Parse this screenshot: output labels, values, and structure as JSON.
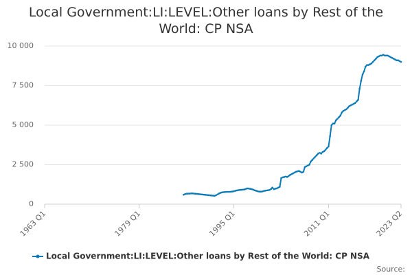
{
  "chart_data": {
    "type": "line",
    "title": "Local Government:LI:LEVEL:Other loans by Rest of the World: CP NSA",
    "source": "Source:",
    "x": [
      "1986 Q3",
      "1986 Q4",
      "1987 Q1",
      "1987 Q2",
      "1987 Q3",
      "1987 Q4",
      "1988 Q1",
      "1988 Q2",
      "1988 Q3",
      "1988 Q4",
      "1989 Q1",
      "1989 Q2",
      "1989 Q3",
      "1989 Q4",
      "1990 Q1",
      "1990 Q2",
      "1990 Q3",
      "1990 Q4",
      "1991 Q1",
      "1991 Q2",
      "1991 Q3",
      "1991 Q4",
      "1992 Q1",
      "1992 Q2",
      "1992 Q3",
      "1992 Q4",
      "1993 Q1",
      "1993 Q2",
      "1993 Q3",
      "1993 Q4",
      "1994 Q1",
      "1994 Q2",
      "1994 Q3",
      "1994 Q4",
      "1995 Q1",
      "1995 Q2",
      "1995 Q3",
      "1995 Q4",
      "1996 Q1",
      "1996 Q2",
      "1996 Q3",
      "1996 Q4",
      "1997 Q1",
      "1997 Q2",
      "1997 Q3",
      "1997 Q4",
      "1998 Q1",
      "1998 Q2",
      "1998 Q3",
      "1998 Q4",
      "1999 Q1",
      "1999 Q2",
      "1999 Q3",
      "1999 Q4",
      "2000 Q1",
      "2000 Q2",
      "2000 Q3",
      "2000 Q4",
      "2001 Q1",
      "2001 Q2",
      "2001 Q3",
      "2001 Q4",
      "2002 Q1",
      "2002 Q2",
      "2002 Q3",
      "2002 Q4",
      "2003 Q1",
      "2003 Q2",
      "2003 Q3",
      "2003 Q4",
      "2004 Q1",
      "2004 Q2",
      "2004 Q3",
      "2004 Q4",
      "2005 Q1",
      "2005 Q2",
      "2005 Q3",
      "2005 Q4",
      "2006 Q1",
      "2006 Q2",
      "2006 Q3",
      "2006 Q4",
      "2007 Q1",
      "2007 Q2",
      "2007 Q3",
      "2007 Q4",
      "2008 Q1",
      "2008 Q2",
      "2008 Q3",
      "2008 Q4",
      "2009 Q1",
      "2009 Q2",
      "2009 Q3",
      "2009 Q4",
      "2010 Q1",
      "2010 Q2",
      "2010 Q3",
      "2010 Q4",
      "2011 Q1",
      "2011 Q2",
      "2011 Q3",
      "2011 Q4",
      "2012 Q1",
      "2012 Q2",
      "2012 Q3",
      "2012 Q4",
      "2013 Q1",
      "2013 Q2",
      "2013 Q3",
      "2013 Q4",
      "2014 Q1",
      "2014 Q2",
      "2014 Q3",
      "2014 Q4",
      "2015 Q1",
      "2015 Q2",
      "2015 Q3",
      "2015 Q4",
      "2016 Q1",
      "2016 Q2",
      "2016 Q3",
      "2016 Q4",
      "2017 Q1",
      "2017 Q2",
      "2017 Q3",
      "2017 Q4",
      "2018 Q1",
      "2018 Q2",
      "2018 Q3",
      "2018 Q4",
      "2019 Q1",
      "2019 Q2",
      "2019 Q3",
      "2019 Q4",
      "2020 Q1",
      "2020 Q2",
      "2020 Q3",
      "2020 Q4",
      "2021 Q1",
      "2021 Q2",
      "2021 Q3",
      "2021 Q4",
      "2022 Q1",
      "2022 Q2",
      "2022 Q3",
      "2022 Q4",
      "2023 Q1",
      "2023 Q2"
    ],
    "series": [
      {
        "name": "Local Government:LI:LEVEL:Other loans by Rest of the World: CP NSA",
        "color": "#0a7ab8",
        "values": [
          600,
          640,
          660,
          670,
          670,
          680,
          680,
          670,
          660,
          650,
          640,
          630,
          620,
          610,
          600,
          590,
          580,
          570,
          560,
          550,
          540,
          530,
          570,
          620,
          680,
          720,
          750,
          760,
          770,
          780,
          780,
          780,
          790,
          800,
          820,
          850,
          870,
          890,
          900,
          910,
          920,
          930,
          960,
          1000,
          990,
          970,
          950,
          920,
          880,
          850,
          820,
          800,
          790,
          800,
          830,
          850,
          870,
          880,
          900,
          950,
          1050,
          950,
          980,
          1000,
          1050,
          1100,
          1650,
          1700,
          1720,
          1750,
          1720,
          1780,
          1850,
          1900,
          1950,
          2000,
          2050,
          2080,
          2100,
          2050,
          2000,
          2050,
          2350,
          2400,
          2450,
          2500,
          2700,
          2800,
          2900,
          3000,
          3100,
          3200,
          3250,
          3200,
          3300,
          3350,
          3450,
          3550,
          3650,
          4300,
          5000,
          5100,
          5100,
          5300,
          5400,
          5500,
          5600,
          5800,
          5900,
          5950,
          6000,
          6100,
          6200,
          6250,
          6300,
          6350,
          6400,
          6500,
          6600,
          7300,
          7800,
          8200,
          8400,
          8700,
          8800,
          8800,
          8850,
          8900,
          9000,
          9100,
          9200,
          9300,
          9350,
          9400,
          9400,
          9450,
          9400,
          9400,
          9400,
          9350,
          9300,
          9250,
          9200,
          9150,
          9100,
          9100,
          9050,
          9000
        ]
      }
    ],
    "xlim": [
      "1963 Q1",
      "2023 Q2"
    ],
    "xticks": [
      "1963 Q1",
      "1979 Q1",
      "1995 Q1",
      "2011 Q1",
      "2023 Q2"
    ],
    "ylim": [
      0,
      10000
    ],
    "yticks": [
      0,
      {
        "value": 2500,
        "label": "2 500"
      },
      {
        "value": 5000,
        "label": "5 000"
      },
      {
        "value": 7500,
        "label": "7 500"
      },
      {
        "value": 10000,
        "label": "10 000"
      }
    ],
    "grid": true,
    "legend": "bottom"
  }
}
